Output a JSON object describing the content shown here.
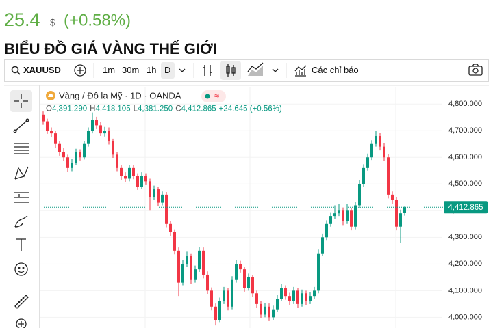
{
  "quote": {
    "price": "25.4",
    "currency": "$",
    "change": "(+0.58%)"
  },
  "page_title": "BIỂU ĐỒ GIÁ VÀNG THẾ GIỚI",
  "toolbar": {
    "symbol": "XAUUSD",
    "intervals": [
      "1m",
      "30m",
      "1h",
      "D"
    ],
    "indicators": "Các chỉ báo"
  },
  "chart_data": {
    "type": "candlestick",
    "title": "Vàng / Đô la Mỹ · 1D · OANDA",
    "badge": "≈",
    "ohlc_legend": [
      {
        "label": "O",
        "text": "4,391.290"
      },
      {
        "label": "H",
        "text": "4,418.105"
      },
      {
        "label": "L",
        "text": "4,381.250"
      },
      {
        "label": "C",
        "text": "4,412.865"
      }
    ],
    "change_text": "+24.645 (+0.56%)",
    "up_color": "#089981",
    "down_color": "#f23645",
    "grid": true,
    "ylim": [
      3960,
      4862
    ],
    "yticks": [
      {
        "value": 4000,
        "label": "4,000.000"
      },
      {
        "value": 4100,
        "label": "4,100.000"
      },
      {
        "value": 4200,
        "label": "4,200.000"
      },
      {
        "value": 4300,
        "label": "4,300.000"
      },
      {
        "value": 4400,
        "label": "4,400.000"
      },
      {
        "value": 4500,
        "label": "4,500.000"
      },
      {
        "value": 4600,
        "label": "4,600.000"
      },
      {
        "value": 4700,
        "label": "4,700.000"
      },
      {
        "value": 4800,
        "label": "4,800.000"
      }
    ],
    "last_price": {
      "value": 4412.865,
      "label": "4,412.865"
    },
    "open": [
      4760,
      4735,
      4700,
      4690,
      4650,
      4620,
      4600,
      4560,
      4580,
      4620,
      4600,
      4650,
      4700,
      4740,
      4720,
      4690,
      4700,
      4660,
      4610,
      4560,
      4530,
      4520,
      4560,
      4530,
      4490,
      4530,
      4510,
      4450,
      4480,
      4430,
      4460,
      4350,
      4320,
      4250,
      4130,
      4200,
      4230,
      4140,
      4180,
      4250,
      4160,
      4100,
      4040,
      3990,
      4060,
      4100,
      4040,
      4140,
      4200,
      4180,
      4110,
      4150,
      4090,
      4050,
      4010,
      4040,
      4000,
      4030,
      4070,
      4110,
      4080,
      4060,
      4100,
      4050,
      4090,
      4060,
      4080,
      4100,
      4240,
      4300,
      4350,
      4380,
      4390,
      4400,
      4360,
      4400,
      4340,
      4420,
      4500,
      4560,
      4600,
      4650,
      4680,
      4640,
      4600,
      4460,
      4440,
      4340,
      4391.29
    ],
    "high": [
      4772,
      4745,
      4712,
      4700,
      4662,
      4634,
      4610,
      4594,
      4632,
      4630,
      4662,
      4712,
      4768,
      4752,
      4732,
      4714,
      4712,
      4670,
      4620,
      4572,
      4544,
      4572,
      4570,
      4540,
      4544,
      4540,
      4520,
      4494,
      4490,
      4472,
      4470,
      4362,
      4330,
      4262,
      4214,
      4246,
      4240,
      4194,
      4264,
      4262,
      4172,
      4112,
      4052,
      4074,
      4114,
      4110,
      4154,
      4214,
      4212,
      4190,
      4164,
      4160,
      4100,
      4062,
      4054,
      4052,
      4044,
      4084,
      4124,
      4120,
      4092,
      4114,
      4110,
      4104,
      4100,
      4094,
      4114,
      4254,
      4314,
      4364,
      4394,
      4420,
      4424,
      4412,
      4424,
      4410,
      4434,
      4514,
      4574,
      4614,
      4664,
      4700,
      4692,
      4652,
      4612,
      4472,
      4452,
      4404,
      4418.105
    ],
    "low": [
      4722,
      4688,
      4676,
      4636,
      4606,
      4586,
      4545,
      4548,
      4570,
      4588,
      4592,
      4640,
      4690,
      4706,
      4680,
      4678,
      4648,
      4598,
      4548,
      4516,
      4506,
      4510,
      4518,
      4478,
      4482,
      4496,
      4400,
      4440,
      4418,
      4420,
      4338,
      4306,
      4236,
      4080,
      4120,
      4188,
      4126,
      4130,
      4170,
      4146,
      4088,
      4026,
      3970,
      3982,
      4050,
      4026,
      4030,
      4130,
      4168,
      4096,
      4100,
      4076,
      4036,
      3996,
      4000,
      3986,
      3990,
      4020,
      4060,
      4066,
      4046,
      4050,
      4036,
      4040,
      4046,
      4050,
      4070,
      4090,
      4230,
      4290,
      4340,
      4370,
      4380,
      4346,
      4350,
      4326,
      4330,
      4410,
      4490,
      4550,
      4590,
      4640,
      4626,
      4586,
      4446,
      4426,
      4326,
      4280,
      4381.25
    ],
    "close": [
      4735,
      4700,
      4690,
      4650,
      4620,
      4600,
      4560,
      4580,
      4620,
      4600,
      4650,
      4700,
      4740,
      4720,
      4690,
      4700,
      4660,
      4610,
      4560,
      4530,
      4520,
      4560,
      4530,
      4490,
      4530,
      4510,
      4450,
      4480,
      4430,
      4460,
      4350,
      4320,
      4250,
      4130,
      4200,
      4230,
      4140,
      4180,
      4250,
      4160,
      4100,
      4040,
      3990,
      4060,
      4100,
      4040,
      4140,
      4200,
      4180,
      4110,
      4150,
      4090,
      4050,
      4010,
      4040,
      4000,
      4030,
      4070,
      4110,
      4080,
      4060,
      4100,
      4050,
      4090,
      4060,
      4080,
      4100,
      4240,
      4300,
      4350,
      4380,
      4390,
      4400,
      4360,
      4400,
      4340,
      4420,
      4500,
      4560,
      4600,
      4650,
      4680,
      4640,
      4600,
      4460,
      4440,
      4340,
      4390,
      4412.865
    ]
  }
}
